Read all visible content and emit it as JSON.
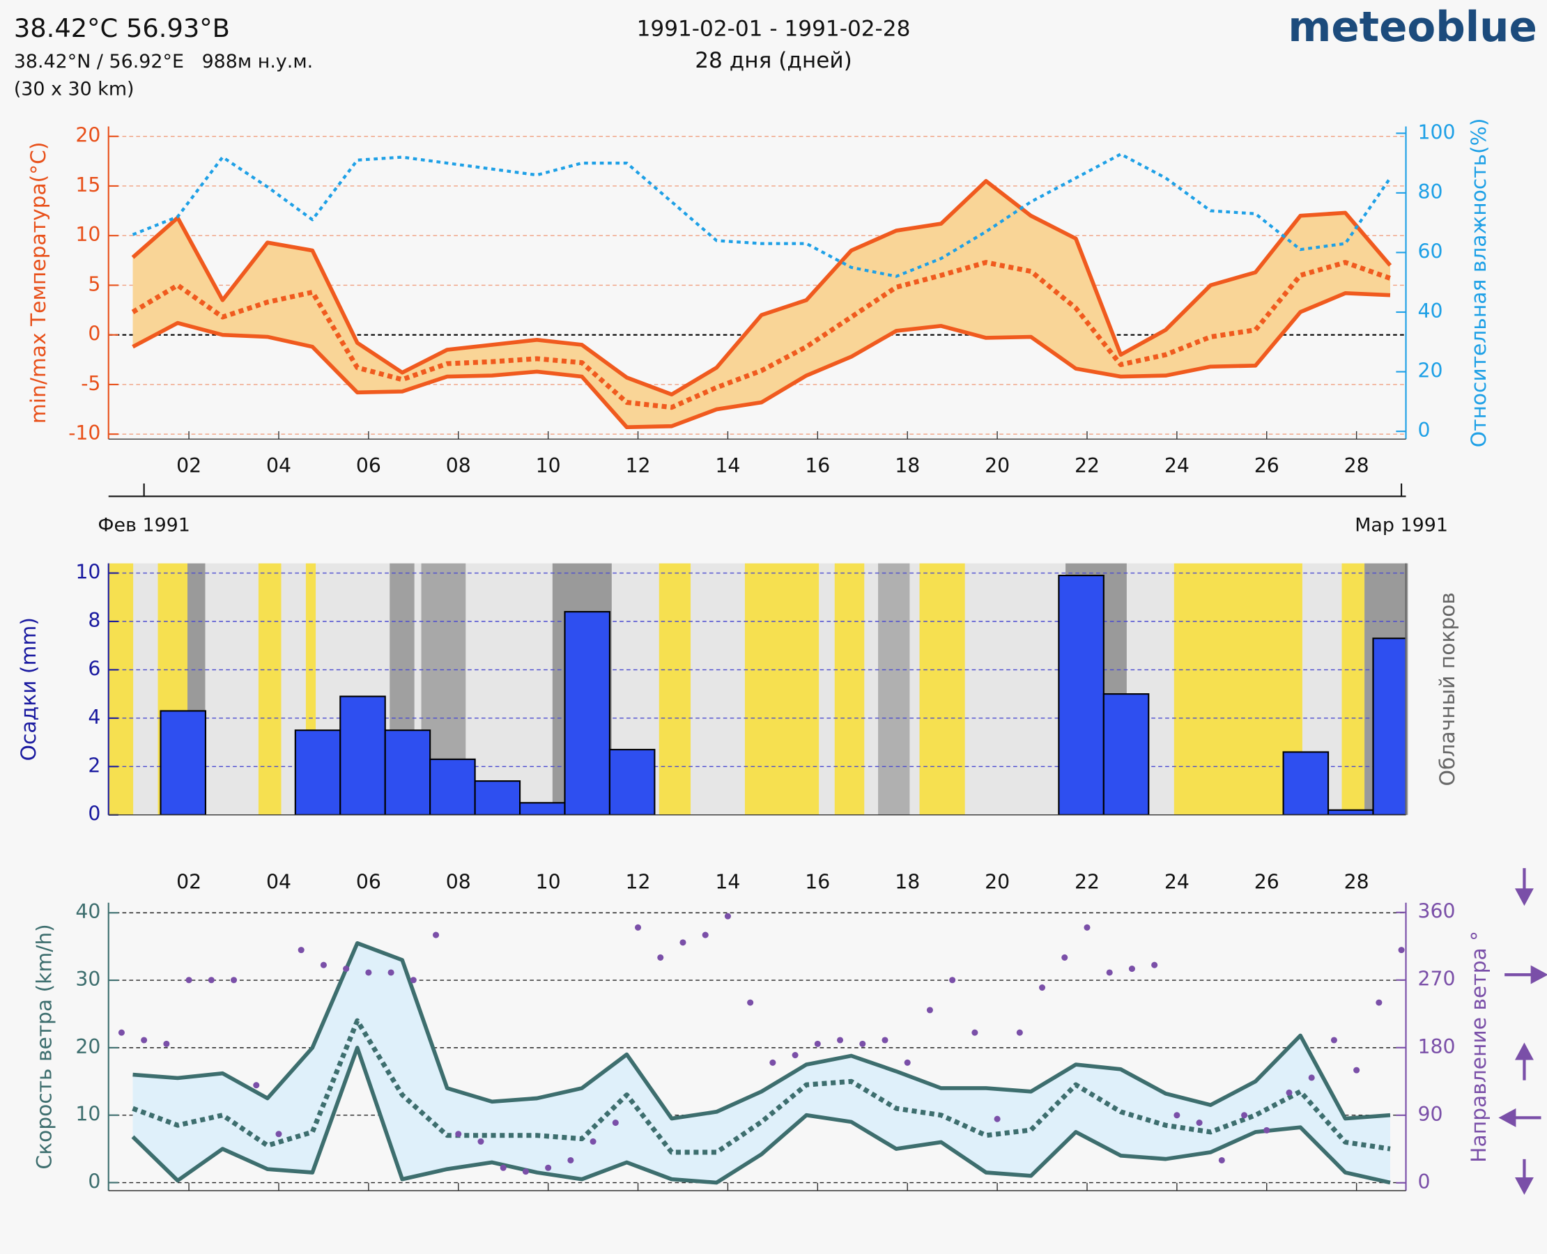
{
  "header": {
    "location": "38.42°C 56.93°B",
    "coords": "38.42°N / 56.92°E   988м н.у.м.",
    "resolution": "(30 x 30 km)",
    "period": "1991-02-01 - 1991-02-28",
    "days": "28 дня (дней)",
    "brand": "meteoblue"
  },
  "chart_data": [
    {
      "type": "line",
      "ylabel": "min/max Температура(°C)",
      "y2label": "Относительная влажность(%)",
      "x": [
        0.75,
        1.75,
        2.75,
        3.75,
        4.75,
        5.75,
        6.75,
        7.75,
        8.75,
        9.75,
        10.75,
        11.75,
        12.75,
        13.75,
        14.75,
        15.75,
        16.75,
        17.75,
        18.75,
        19.75,
        20.75,
        21.75,
        22.75,
        23.75,
        24.75,
        25.75,
        26.75,
        27.75,
        28.75
      ],
      "series": [
        {
          "color": "#f05a1e",
          "style": "solid",
          "values": [
            7.8,
            11.8,
            3.5,
            9.3,
            8.5,
            -0.8,
            -3.8,
            -1.5,
            -1.0,
            -0.5,
            -1.0,
            -4.3,
            -6.0,
            -3.3,
            2.0,
            3.5,
            8.5,
            10.5,
            11.2,
            15.5,
            12.0,
            9.7,
            -2.0,
            0.5,
            5.0,
            6.3,
            12.0,
            12.3,
            7.0
          ]
        },
        {
          "color": "#f05a1e",
          "style": "dotted",
          "values": [
            2.3,
            5.0,
            1.8,
            3.3,
            4.3,
            -3.3,
            -4.5,
            -2.9,
            -2.7,
            -2.4,
            -2.8,
            -6.8,
            -7.3,
            -5.3,
            -3.6,
            -1.2,
            1.8,
            4.8,
            6.0,
            7.3,
            6.4,
            2.7,
            -3.0,
            -2.0,
            -0.2,
            0.5,
            6.0,
            7.3,
            5.7
          ]
        },
        {
          "color": "#f05a1e",
          "style": "solid",
          "values": [
            -1.2,
            1.2,
            0.0,
            -0.2,
            -1.2,
            -5.8,
            -5.7,
            -4.2,
            -4.1,
            -3.7,
            -4.2,
            -9.3,
            -9.2,
            -7.5,
            -6.8,
            -4.1,
            -2.2,
            0.4,
            0.9,
            -0.3,
            -0.2,
            -3.4,
            -4.2,
            -4.1,
            -3.2,
            -3.1,
            2.3,
            4.2,
            4.0
          ]
        },
        {
          "color": "#1ea0e6",
          "style": "dotted",
          "axis": "y2",
          "values": [
            66,
            72,
            92,
            82,
            71,
            91,
            92,
            90,
            88,
            86,
            90,
            90,
            77,
            64,
            63,
            63,
            55,
            52,
            58,
            67,
            77,
            85,
            93,
            85,
            74,
            73,
            61,
            63,
            85
          ]
        }
      ],
      "band_fill": "#f9d597",
      "xlim": [
        0.21,
        29.1
      ],
      "xticks": [
        {
          "value": 2,
          "label": "02"
        },
        {
          "value": 4,
          "label": "04"
        },
        {
          "value": 6,
          "label": "06"
        },
        {
          "value": 8,
          "label": "08"
        },
        {
          "value": 10,
          "label": "10"
        },
        {
          "value": 12,
          "label": "12"
        },
        {
          "value": 14,
          "label": "14"
        },
        {
          "value": 16,
          "label": "16"
        },
        {
          "value": 18,
          "label": "18"
        },
        {
          "value": 20,
          "label": "20"
        },
        {
          "value": 22,
          "label": "22"
        },
        {
          "value": 24,
          "label": "24"
        },
        {
          "value": 26,
          "label": "26"
        },
        {
          "value": 28,
          "label": "28"
        }
      ],
      "month_ticks": [
        {
          "value": 1,
          "label": "Фев 1991"
        },
        {
          "value": 29,
          "label": "Мар 1991"
        }
      ],
      "ylim": [
        -10.5,
        21
      ],
      "yticks": [
        -10,
        -5,
        0,
        5,
        10,
        15,
        20
      ],
      "ycolor": "#e8501a",
      "grid": true,
      "grid_color": "#f0a080",
      "y2lim": [
        -2.6,
        102.3
      ],
      "y2ticks": [
        0,
        20,
        40,
        60,
        80,
        100
      ],
      "y2color": "#1ea0e6"
    },
    {
      "type": "histogram",
      "ylabel": "Осадки (mm)",
      "y2label": "Облачный покров",
      "color": "#2e4ff0",
      "bins": [
        0.37,
        1.37,
        2.37,
        3.37,
        4.37,
        5.37,
        6.37,
        7.37,
        8.37,
        9.37,
        10.37,
        11.37,
        12.37,
        13.37,
        14.37,
        15.37,
        16.37,
        17.37,
        18.37,
        19.37,
        20.37,
        21.37,
        22.37,
        23.37,
        24.37,
        25.37,
        26.37,
        27.37,
        28.37,
        29.37
      ],
      "values": [
        0,
        4.3,
        0,
        0,
        3.5,
        4.9,
        3.5,
        2.3,
        1.4,
        0.5,
        8.4,
        2.7,
        0,
        0,
        0,
        0,
        0,
        0,
        0,
        0,
        0,
        9.9,
        5.0,
        0,
        0,
        0,
        2.6,
        0.2,
        7.3
      ],
      "xlim": [
        0.21,
        29.1
      ],
      "ylim": [
        0,
        10.4
      ],
      "yticks": [
        0,
        2,
        4,
        6,
        8,
        10
      ],
      "ycolor": "#1a1aa0",
      "grid": true,
      "grid_color": "#4a4ad0"
    },
    {
      "type": "line",
      "ylabel": "Скорость ветра (km/h)",
      "y2label": "Направление ветра °",
      "x": [
        0.75,
        1.75,
        2.75,
        3.75,
        4.75,
        5.75,
        6.75,
        7.75,
        8.75,
        9.75,
        10.75,
        11.75,
        12.75,
        13.75,
        14.75,
        15.75,
        16.75,
        17.75,
        18.75,
        19.75,
        20.75,
        21.75,
        22.75,
        23.75,
        24.75,
        25.75,
        26.75,
        27.75,
        28.75
      ],
      "series": [
        {
          "color": "#3d6e6e",
          "style": "solid",
          "values": [
            16,
            15.5,
            16.2,
            12.5,
            20,
            35.5,
            33,
            14,
            12,
            12.5,
            14,
            19,
            9.5,
            10.5,
            13.5,
            17.5,
            18.8,
            16.5,
            14,
            14,
            13.5,
            17.5,
            16.8,
            13.2,
            11.5,
            15,
            21.8,
            9.5,
            10
          ]
        },
        {
          "color": "#3d6e6e",
          "style": "dotted",
          "values": [
            11,
            8.5,
            10,
            5.5,
            7.5,
            24,
            13,
            7,
            7,
            7,
            6.5,
            13,
            4.5,
            4.5,
            9,
            14.5,
            15,
            11,
            10,
            7,
            7.8,
            14.5,
            10.5,
            8.5,
            7.5,
            10,
            13.5,
            6,
            5
          ]
        },
        {
          "color": "#3d6e6e",
          "style": "solid",
          "values": [
            6.8,
            0.3,
            5,
            2,
            1.5,
            20,
            0.5,
            2,
            3,
            1.5,
            0.5,
            3,
            0.5,
            0,
            4.2,
            10,
            9,
            5,
            6,
            1.5,
            1,
            7.5,
            4,
            3.5,
            4.5,
            7.5,
            8.2,
            1.5,
            0
          ]
        },
        {
          "color": "#7a4fa8",
          "style": "dots",
          "axis": "y2",
          "x": [
            0.5,
            1.0,
            1.5,
            2.0,
            2.5,
            3.0,
            3.5,
            4.0,
            4.5,
            5.0,
            5.5,
            6.0,
            6.5,
            7.0,
            7.5,
            8.0,
            8.5,
            9.0,
            9.5,
            10.0,
            10.5,
            11.0,
            11.5,
            12.0,
            12.5,
            13.0,
            13.5,
            14.0,
            14.5,
            15.0,
            15.5,
            16.0,
            16.5,
            17.0,
            17.5,
            18.0,
            18.5,
            19.0,
            19.5,
            20.0,
            20.5,
            21.0,
            21.5,
            22.0,
            22.5,
            23.0,
            23.5,
            24.0,
            24.5,
            25.0,
            25.5,
            26.0,
            26.5,
            27.0,
            27.5,
            28.0,
            28.5,
            29.0
          ],
          "values": [
            200,
            190,
            185,
            270,
            270,
            270,
            130,
            65,
            310,
            290,
            285,
            280,
            280,
            270,
            330,
            65,
            55,
            20,
            15,
            20,
            30,
            55,
            80,
            340,
            300,
            320,
            330,
            355,
            240,
            160,
            170,
            185,
            190,
            185,
            190,
            160,
            230,
            270,
            200,
            85,
            200,
            260,
            300,
            340,
            280,
            285,
            290,
            90,
            80,
            30,
            90,
            70,
            120,
            140,
            190,
            150,
            240,
            310
          ]
        }
      ],
      "band_fill": "#dff0fa",
      "xlim": [
        0.21,
        29.1
      ],
      "xticks": [
        {
          "value": 2,
          "label": "02"
        },
        {
          "value": 4,
          "label": "04"
        },
        {
          "value": 6,
          "label": "06"
        },
        {
          "value": 8,
          "label": "08"
        },
        {
          "value": 10,
          "label": "10"
        },
        {
          "value": 12,
          "label": "12"
        },
        {
          "value": 14,
          "label": "14"
        },
        {
          "value": 16,
          "label": "16"
        },
        {
          "value": 18,
          "label": "18"
        },
        {
          "value": 20,
          "label": "20"
        },
        {
          "value": 22,
          "label": "22"
        },
        {
          "value": 24,
          "label": "24"
        },
        {
          "value": 26,
          "label": "26"
        },
        {
          "value": 28,
          "label": "28"
        }
      ],
      "ylim": [
        -1.2,
        41.5
      ],
      "yticks": [
        0,
        10,
        20,
        30,
        40
      ],
      "ycolor": "#3d6e6e",
      "grid": true,
      "grid_color": "#222222",
      "y2lim": [
        -10.5,
        373
      ],
      "y2ticks": [
        0,
        90,
        180,
        270,
        360
      ],
      "y2color": "#7a4fa8"
    }
  ]
}
